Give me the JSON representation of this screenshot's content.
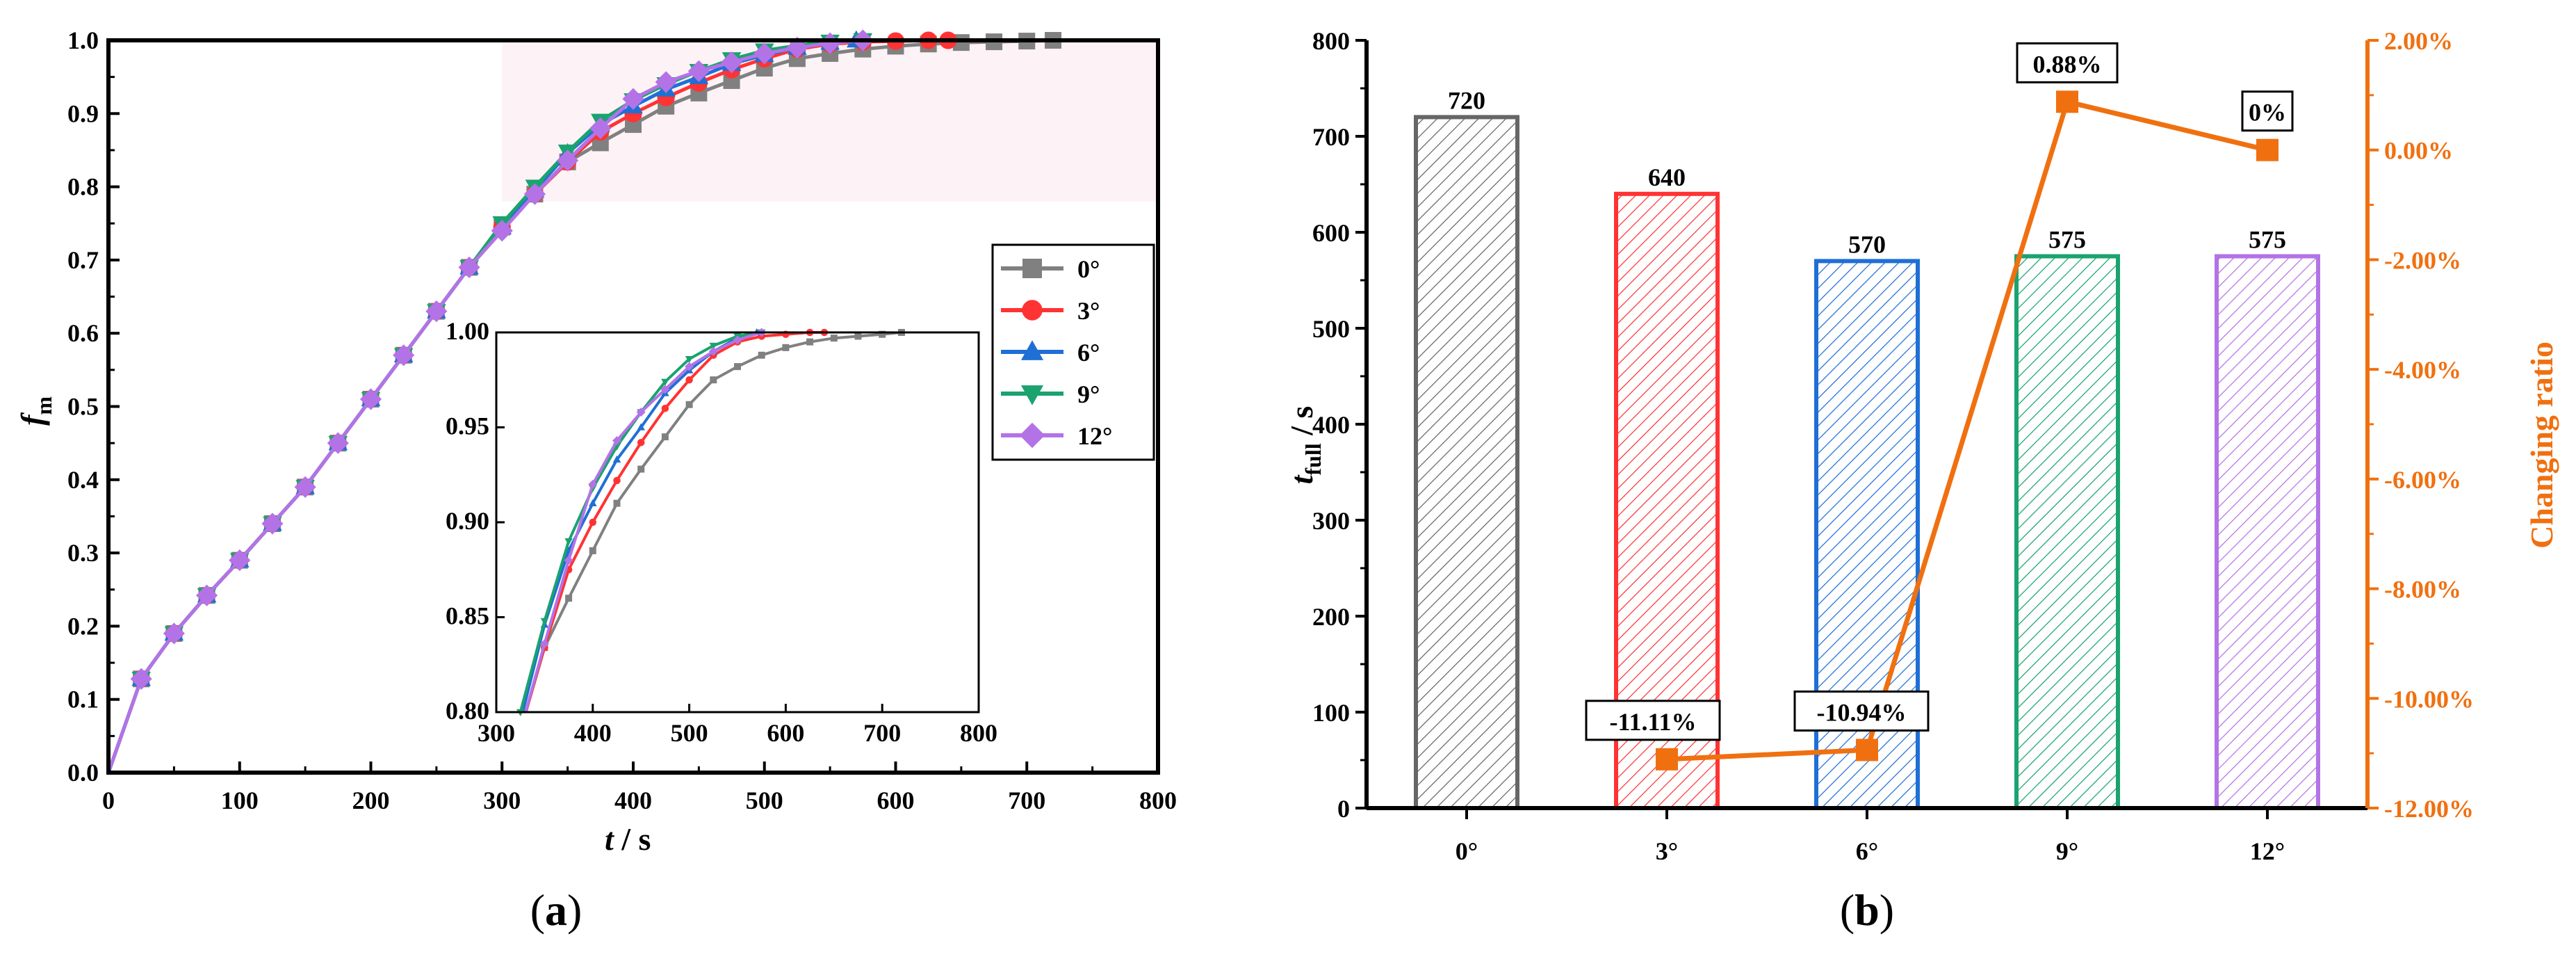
{
  "chart_data": [
    {
      "type": "line",
      "panel": "(a)",
      "xlabel_main": "t",
      "xlabel_unit": " / s",
      "ylabel_main": "f",
      "ylabel_sub": "m",
      "xlim": [
        0,
        800
      ],
      "ylim": [
        0,
        1.0
      ],
      "xticks": [
        "0",
        "100",
        "200",
        "300",
        "400",
        "500",
        "600",
        "700",
        "800"
      ],
      "yticks": [
        "0.0",
        "0.1",
        "0.2",
        "0.3",
        "0.4",
        "0.5",
        "0.6",
        "0.7",
        "0.8",
        "0.9",
        "1.0"
      ],
      "legend_position": "right-middle",
      "series": [
        {
          "name": "0°",
          "color": "#808080",
          "marker": "square",
          "x": [
            0,
            25,
            50,
            75,
            100,
            125,
            150,
            175,
            200,
            225,
            250,
            275,
            300,
            325,
            350,
            375,
            400,
            425,
            450,
            475,
            500,
            525,
            550,
            575,
            600,
            625,
            650,
            675,
            700,
            720
          ],
          "y": [
            0,
            0.128,
            0.19,
            0.242,
            0.29,
            0.34,
            0.39,
            0.45,
            0.51,
            0.57,
            0.63,
            0.69,
            0.745,
            0.79,
            0.834,
            0.86,
            0.885,
            0.91,
            0.928,
            0.945,
            0.962,
            0.975,
            0.982,
            0.988,
            0.992,
            0.995,
            0.997,
            0.998,
            0.999,
            1.0
          ]
        },
        {
          "name": "3°",
          "color": "#ff3333",
          "marker": "circle",
          "x": [
            0,
            25,
            50,
            75,
            100,
            125,
            150,
            175,
            200,
            225,
            250,
            275,
            300,
            325,
            350,
            375,
            400,
            425,
            450,
            475,
            500,
            525,
            550,
            575,
            600,
            625,
            640
          ],
          "y": [
            0,
            0.128,
            0.19,
            0.242,
            0.29,
            0.34,
            0.39,
            0.45,
            0.51,
            0.57,
            0.63,
            0.69,
            0.745,
            0.79,
            0.834,
            0.875,
            0.9,
            0.922,
            0.942,
            0.96,
            0.975,
            0.988,
            0.995,
            0.998,
            0.999,
            1.0,
            1.0
          ]
        },
        {
          "name": "6°",
          "color": "#1f6fd6",
          "marker": "triangle-up",
          "x": [
            0,
            25,
            50,
            75,
            100,
            125,
            150,
            175,
            200,
            225,
            250,
            275,
            300,
            325,
            350,
            375,
            400,
            425,
            450,
            475,
            500,
            525,
            550,
            570
          ],
          "y": [
            0,
            0.128,
            0.19,
            0.242,
            0.29,
            0.34,
            0.39,
            0.45,
            0.51,
            0.57,
            0.63,
            0.69,
            0.745,
            0.795,
            0.846,
            0.885,
            0.91,
            0.933,
            0.95,
            0.968,
            0.98,
            0.99,
            0.997,
            1.0
          ]
        },
        {
          "name": "9°",
          "color": "#1aa36f",
          "marker": "triangle-down",
          "x": [
            0,
            25,
            50,
            75,
            100,
            125,
            150,
            175,
            200,
            225,
            250,
            275,
            300,
            325,
            350,
            375,
            400,
            425,
            450,
            475,
            500,
            525,
            550,
            575
          ],
          "y": [
            0,
            0.128,
            0.19,
            0.242,
            0.29,
            0.34,
            0.39,
            0.45,
            0.51,
            0.57,
            0.63,
            0.69,
            0.75,
            0.8,
            0.848,
            0.89,
            0.918,
            0.94,
            0.958,
            0.974,
            0.986,
            0.993,
            0.998,
            1.0
          ]
        },
        {
          "name": "12°",
          "color": "#b373e6",
          "marker": "diamond",
          "x": [
            0,
            25,
            50,
            75,
            100,
            125,
            150,
            175,
            200,
            225,
            250,
            275,
            300,
            325,
            350,
            375,
            400,
            425,
            450,
            475,
            500,
            525,
            550,
            575
          ],
          "y": [
            0,
            0.128,
            0.19,
            0.242,
            0.29,
            0.34,
            0.39,
            0.45,
            0.51,
            0.57,
            0.63,
            0.69,
            0.74,
            0.79,
            0.836,
            0.88,
            0.92,
            0.943,
            0.958,
            0.97,
            0.982,
            0.99,
            0.996,
            1.0
          ]
        }
      ],
      "inset": {
        "xlim": [
          300,
          800
        ],
        "ylim": [
          0.8,
          1.0
        ],
        "xticks": [
          "300",
          "400",
          "500",
          "600",
          "700",
          "800"
        ],
        "yticks": [
          "0.80",
          "0.85",
          "0.90",
          "0.95",
          "1.00"
        ]
      }
    },
    {
      "type": "bar",
      "panel": "(b)",
      "categories": [
        "0°",
        "3°",
        "6°",
        "9°",
        "12°"
      ],
      "values": [
        720,
        640,
        570,
        575,
        575
      ],
      "bar_labels": [
        "720",
        "640",
        "570",
        "575",
        "575"
      ],
      "bar_colors": [
        "#666666",
        "#ff3333",
        "#1f6fd6",
        "#1aa36f",
        "#b373e6"
      ],
      "ylabel_main": "t",
      "ylabel_sub": "full",
      "ylabel_unit": " / s",
      "ylim": [
        0,
        800
      ],
      "yticks": [
        "0",
        "100",
        "200",
        "300",
        "400",
        "500",
        "600",
        "700",
        "800"
      ],
      "secondary": {
        "name": "Changing ratio",
        "color": "#f07010",
        "ylim": [
          -12,
          2
        ],
        "yticks": [
          "2.00%",
          "0.00%",
          "-2.00%",
          "-4.00%",
          "-6.00%",
          "-8.00%",
          "-10.00%",
          "-12.00%"
        ],
        "values": [
          -11.11,
          -10.94,
          0.88,
          0
        ],
        "categories": [
          "3°",
          "6°",
          "9°",
          "12°"
        ],
        "labels": [
          "-11.11%",
          "-10.94%",
          "0.88%",
          "0%"
        ]
      }
    }
  ]
}
